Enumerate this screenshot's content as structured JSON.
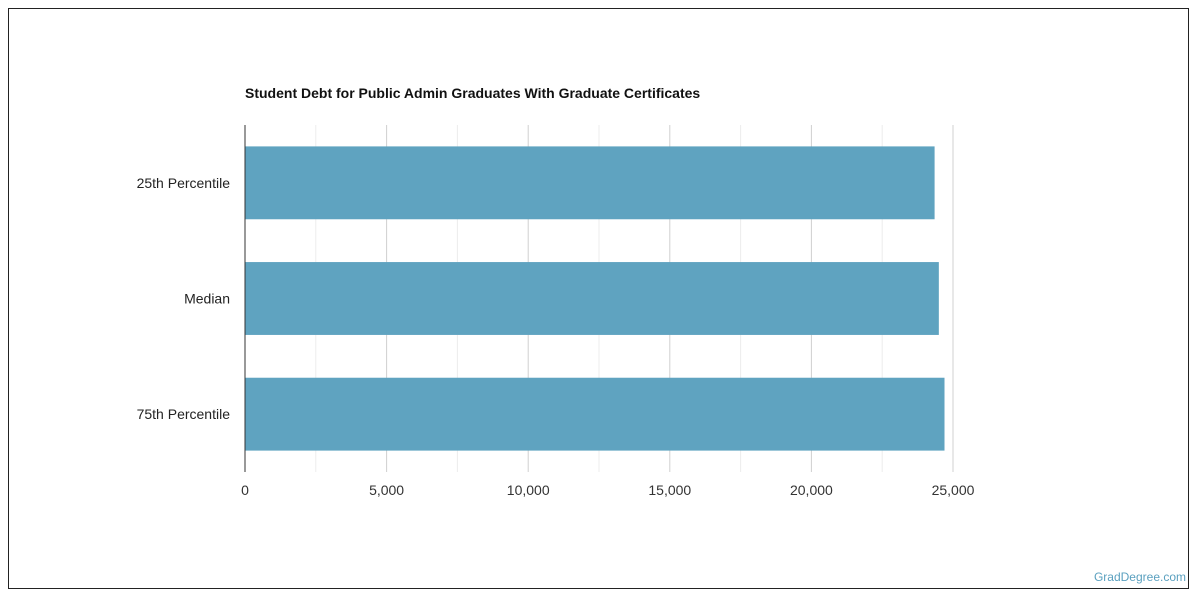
{
  "chart_data": {
    "type": "bar",
    "orientation": "horizontal",
    "title": "Student Debt for Public Admin Graduates With Graduate Certificates",
    "categories": [
      "25th Percentile",
      "Median",
      "75th Percentile"
    ],
    "values": [
      24350,
      24500,
      24700
    ],
    "xlim": [
      0,
      25000
    ],
    "x_ticks": [
      0,
      5000,
      10000,
      15000,
      20000,
      25000
    ],
    "x_tick_labels": [
      "0",
      "5,000",
      "10,000",
      "15,000",
      "20,000",
      "25,000"
    ],
    "grid": true,
    "bar_color": "#5fa3c0",
    "xlabel": "",
    "ylabel": ""
  },
  "watermark": "GradDegree.com"
}
